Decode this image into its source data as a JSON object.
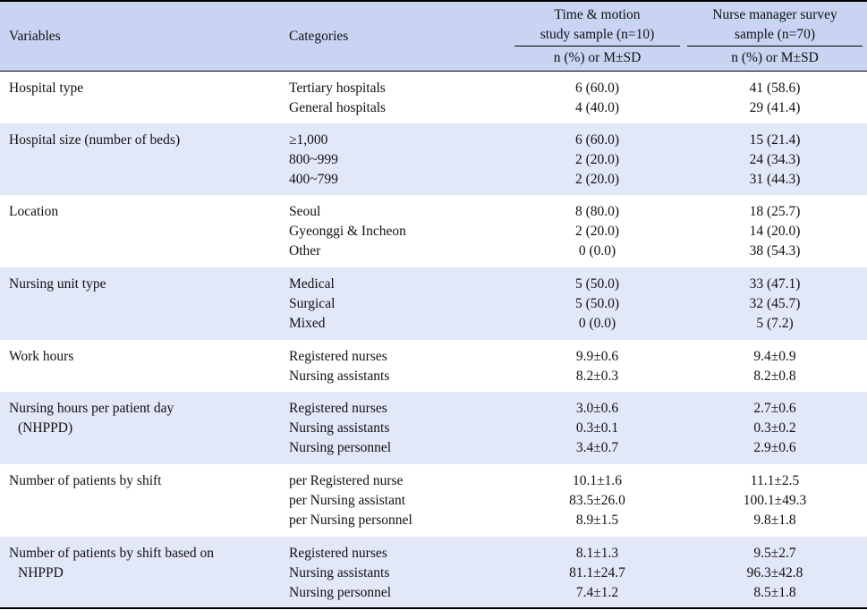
{
  "colors": {
    "header_bg": "#c9d4f2",
    "band_bg": "#e2e8f8",
    "white": "#ffffff"
  },
  "header": {
    "variables": "Variables",
    "categories": "Categories",
    "col1_title_line1": "Time & motion",
    "col1_title_line2": "study sample (n=10)",
    "col2_title_line1": "Nurse manager survey",
    "col2_title_line2": "sample (n=70)",
    "col1_unit": "n (%) or M±SD",
    "col2_unit": "n (%) or M±SD"
  },
  "rows": [
    {
      "variable": [
        "Hospital type"
      ],
      "categories": [
        "Tertiary hospitals",
        "General hospitals"
      ],
      "col1": [
        "6 (60.0)",
        "4 (40.0)"
      ],
      "col2": [
        "41 (58.6)",
        "29 (41.4)"
      ]
    },
    {
      "variable": [
        "Hospital size (number of beds)"
      ],
      "categories": [
        "≥1,000",
        "800~999",
        "400~799"
      ],
      "col1": [
        "6 (60.0)",
        "2 (20.0)",
        "2 (20.0)"
      ],
      "col2": [
        "15 (21.4)",
        "24 (34.3)",
        "31 (44.3)"
      ]
    },
    {
      "variable": [
        "Location"
      ],
      "categories": [
        "Seoul",
        "Gyeonggi & Incheon",
        "Other"
      ],
      "col1": [
        "8 (80.0)",
        "2 (20.0)",
        "0 (0.0)"
      ],
      "col2": [
        "18 (25.7)",
        "14 (20.0)",
        "38 (54.3)"
      ]
    },
    {
      "variable": [
        "Nursing unit type"
      ],
      "categories": [
        "Medical",
        "Surgical",
        "Mixed"
      ],
      "col1": [
        "5 (50.0)",
        "5 (50.0)",
        "0 (0.0)"
      ],
      "col2": [
        "33 (47.1)",
        "32 (45.7)",
        "5 (7.2)"
      ]
    },
    {
      "variable": [
        "Work hours"
      ],
      "categories": [
        "Registered nurses",
        "Nursing assistants"
      ],
      "col1": [
        "9.9±0.6",
        "8.2±0.3"
      ],
      "col2": [
        "9.4±0.9",
        "8.2±0.8"
      ]
    },
    {
      "variable": [
        "Nursing hours per patient day",
        "(NHPPD)"
      ],
      "categories": [
        "Registered nurses",
        "Nursing assistants",
        "Nursing personnel"
      ],
      "col1": [
        "3.0±0.6",
        "0.3±0.1",
        "3.4±0.7"
      ],
      "col2": [
        "2.7±0.6",
        "0.3±0.2",
        "2.9±0.6"
      ]
    },
    {
      "variable": [
        "Number of patients by shift"
      ],
      "categories": [
        "per Registered nurse",
        "per Nursing assistant",
        "per Nursing personnel"
      ],
      "col1": [
        "10.1±1.6",
        "83.5±26.0",
        "8.9±1.5"
      ],
      "col2": [
        "11.1±2.5",
        "100.1±49.3",
        "9.8±1.8"
      ]
    },
    {
      "variable": [
        "Number of patients by shift based on",
        "NHPPD"
      ],
      "categories": [
        "Registered nurses",
        "Nursing assistants",
        "Nursing personnel"
      ],
      "col1": [
        "8.1±1.3",
        "81.1±24.7",
        "7.4±1.2"
      ],
      "col2": [
        "9.5±2.7",
        "96.3±42.8",
        "8.5±1.8"
      ]
    }
  ]
}
